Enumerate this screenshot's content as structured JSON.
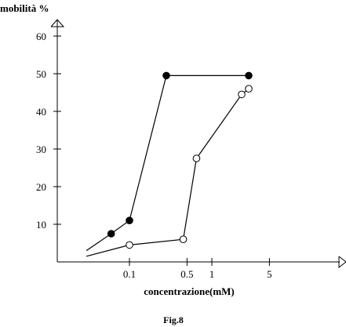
{
  "chart_data": {
    "type": "line",
    "ylabel": "mobilità %",
    "xlabel": "concentrazione(mM)",
    "caption": "Fig.8",
    "y_ticks": [
      10,
      20,
      30,
      40,
      50,
      60
    ],
    "x_ticks": [
      {
        "value": 0.1,
        "label": "0.1"
      },
      {
        "value": 0.5,
        "label": "0.5"
      },
      {
        "value": 1,
        "label": "1"
      },
      {
        "value": 5,
        "label": "5"
      }
    ],
    "series": [
      {
        "marker": "filled-circle",
        "line_start": [
          0.03,
          3.0
        ],
        "points": [
          [
            0.06,
            7.5
          ],
          [
            0.1,
            11
          ],
          [
            0.28,
            49.5
          ],
          [
            2.8,
            49.5
          ]
        ]
      },
      {
        "marker": "open-circle",
        "line_start": [
          0.03,
          1.5
        ],
        "points": [
          [
            0.1,
            4.5
          ],
          [
            0.45,
            6
          ],
          [
            0.65,
            27.5
          ],
          [
            2.3,
            44.5
          ],
          [
            2.8,
            46
          ]
        ]
      }
    ]
  }
}
